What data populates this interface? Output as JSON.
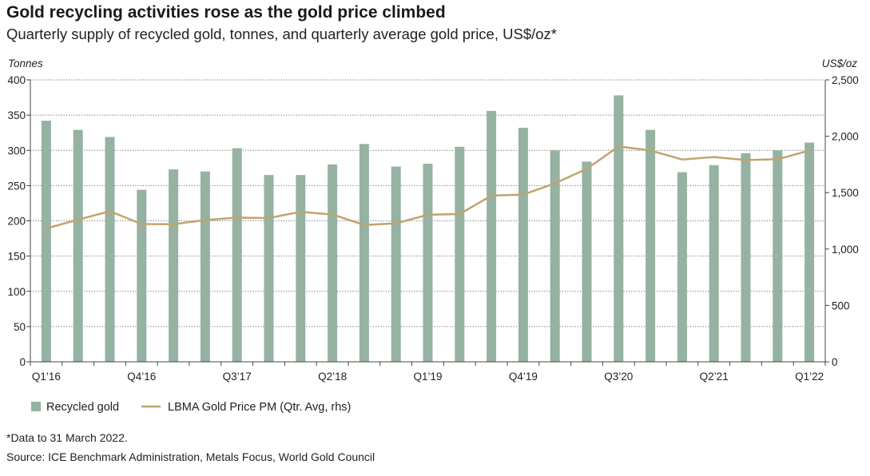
{
  "title": "Gold recycling activities rose as the gold price climbed",
  "subtitle": "Quarterly supply of recycled gold, tonnes, and quarterly average gold price, US$/oz*",
  "notes": {
    "footnote": "*Data to 31 March 2022.",
    "source": "Source: ICE Benchmark Administration, Metals Focus, World Gold Council"
  },
  "chart_data": {
    "type": "bar",
    "categories": [
      "Q1'16",
      "Q2'16",
      "Q3'16",
      "Q4'16",
      "Q1'17",
      "Q2'17",
      "Q3'17",
      "Q4'17",
      "Q1'18",
      "Q2'18",
      "Q3'18",
      "Q4'18",
      "Q1'19",
      "Q2'19",
      "Q3'19",
      "Q4'19",
      "Q1'20",
      "Q2'20",
      "Q3'20",
      "Q4'20",
      "Q1'21",
      "Q2'21",
      "Q3'21",
      "Q4'21",
      "Q1'22"
    ],
    "tick_labels": [
      "Q1’16",
      "Q4’16",
      "Q3’17",
      "Q2’18",
      "Q1’19",
      "Q4’19",
      "Q3’20",
      "Q2’21",
      "Q1’22"
    ],
    "tick_indices": [
      0,
      3,
      6,
      9,
      12,
      15,
      18,
      21,
      24
    ],
    "series": [
      {
        "name": "Recycled gold",
        "type": "bar",
        "axis": "left",
        "color": "#95b2a3",
        "values": [
          342,
          329,
          319,
          244,
          273,
          270,
          303,
          265,
          265,
          280,
          309,
          277,
          281,
          305,
          356,
          332,
          300,
          284,
          378,
          329,
          269,
          279,
          296,
          300,
          311
        ]
      },
      {
        "name": "LBMA Gold Price PM (Qtr. Avg, rhs)",
        "type": "line",
        "axis": "right",
        "color": "#c0a46e",
        "values": [
          1183,
          1260,
          1335,
          1222,
          1220,
          1257,
          1278,
          1275,
          1330,
          1306,
          1213,
          1228,
          1304,
          1310,
          1474,
          1482,
          1583,
          1711,
          1909,
          1874,
          1794,
          1816,
          1789,
          1796,
          1874
        ]
      }
    ],
    "y_left": {
      "label": "Tonnes",
      "min": 0,
      "max": 400,
      "ticks": [
        0,
        50,
        100,
        150,
        200,
        250,
        300,
        350,
        400
      ]
    },
    "y_right": {
      "label": "US$/oz",
      "min": 0,
      "max": 2500,
      "ticks": [
        0,
        500,
        1000,
        1500,
        2000,
        2500
      ],
      "tick_labels": [
        "0",
        "500",
        "1,000",
        "1,500",
        "2,000",
        "2,500"
      ]
    },
    "grid": true,
    "legend": "bottom-left"
  }
}
